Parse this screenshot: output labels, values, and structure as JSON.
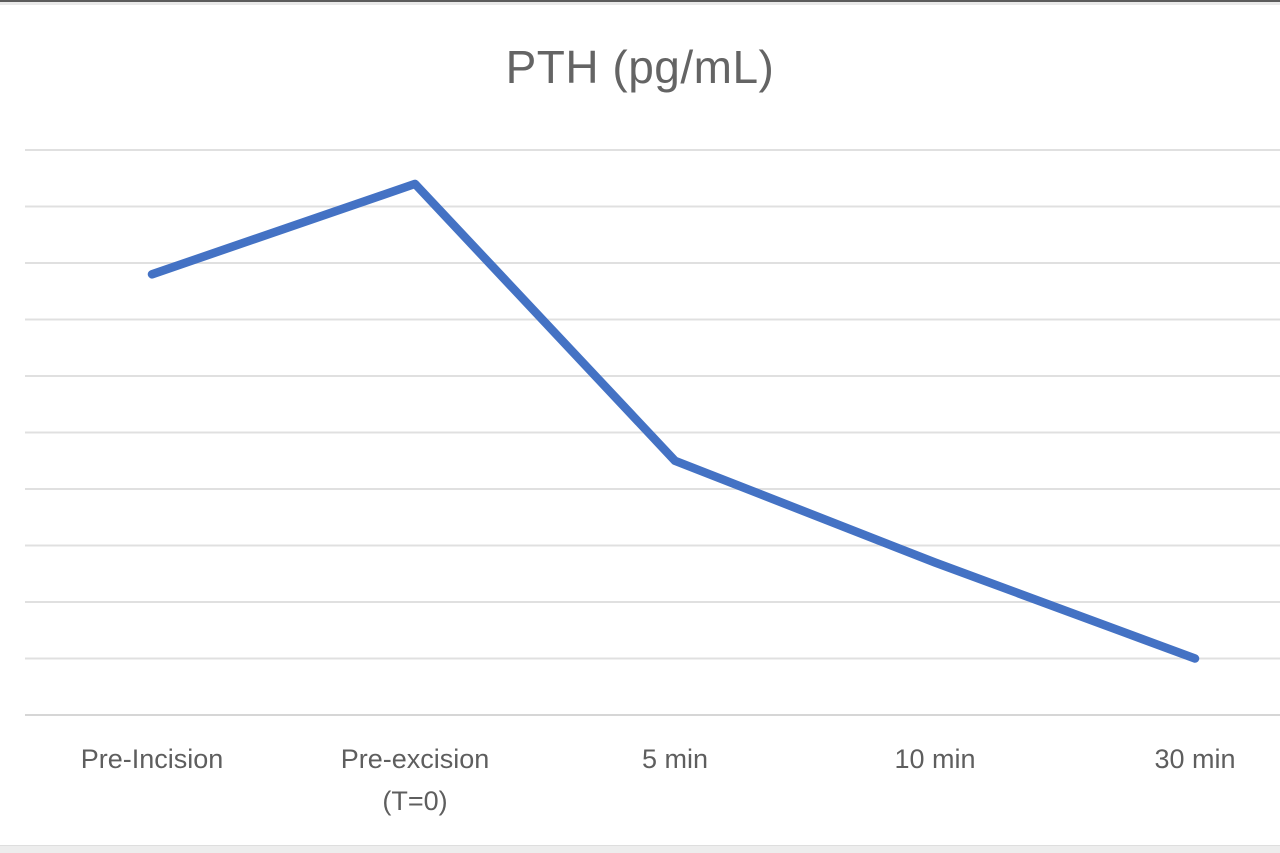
{
  "chart": {
    "title": "PTH (pg/mL)"
  },
  "chart_data": {
    "type": "line",
    "title": "PTH (pg/mL)",
    "categories": [
      "Pre-Incision",
      "Pre-excision (T=0)",
      "5 min",
      "10 min",
      "30 min"
    ],
    "values": [
      78,
      94,
      45,
      27,
      10
    ],
    "xlabel": "",
    "ylabel": "",
    "ylim": [
      0,
      100
    ],
    "gridline_step": 10,
    "grid": true,
    "legend": false,
    "y_tick_labels_visible": false,
    "series_color": "#4472C4",
    "gridline_color": "#E0E0E0",
    "axis_line_color": "#D6D6D6",
    "text_color": "#5E5E5E",
    "x_tick_labels": [
      {
        "line1": "Pre-Incision",
        "line2": ""
      },
      {
        "line1": "Pre-excision",
        "line2": "(T=0)"
      },
      {
        "line1": "5 min",
        "line2": ""
      },
      {
        "line1": "10 min",
        "line2": ""
      },
      {
        "line1": "30 min",
        "line2": ""
      }
    ]
  }
}
